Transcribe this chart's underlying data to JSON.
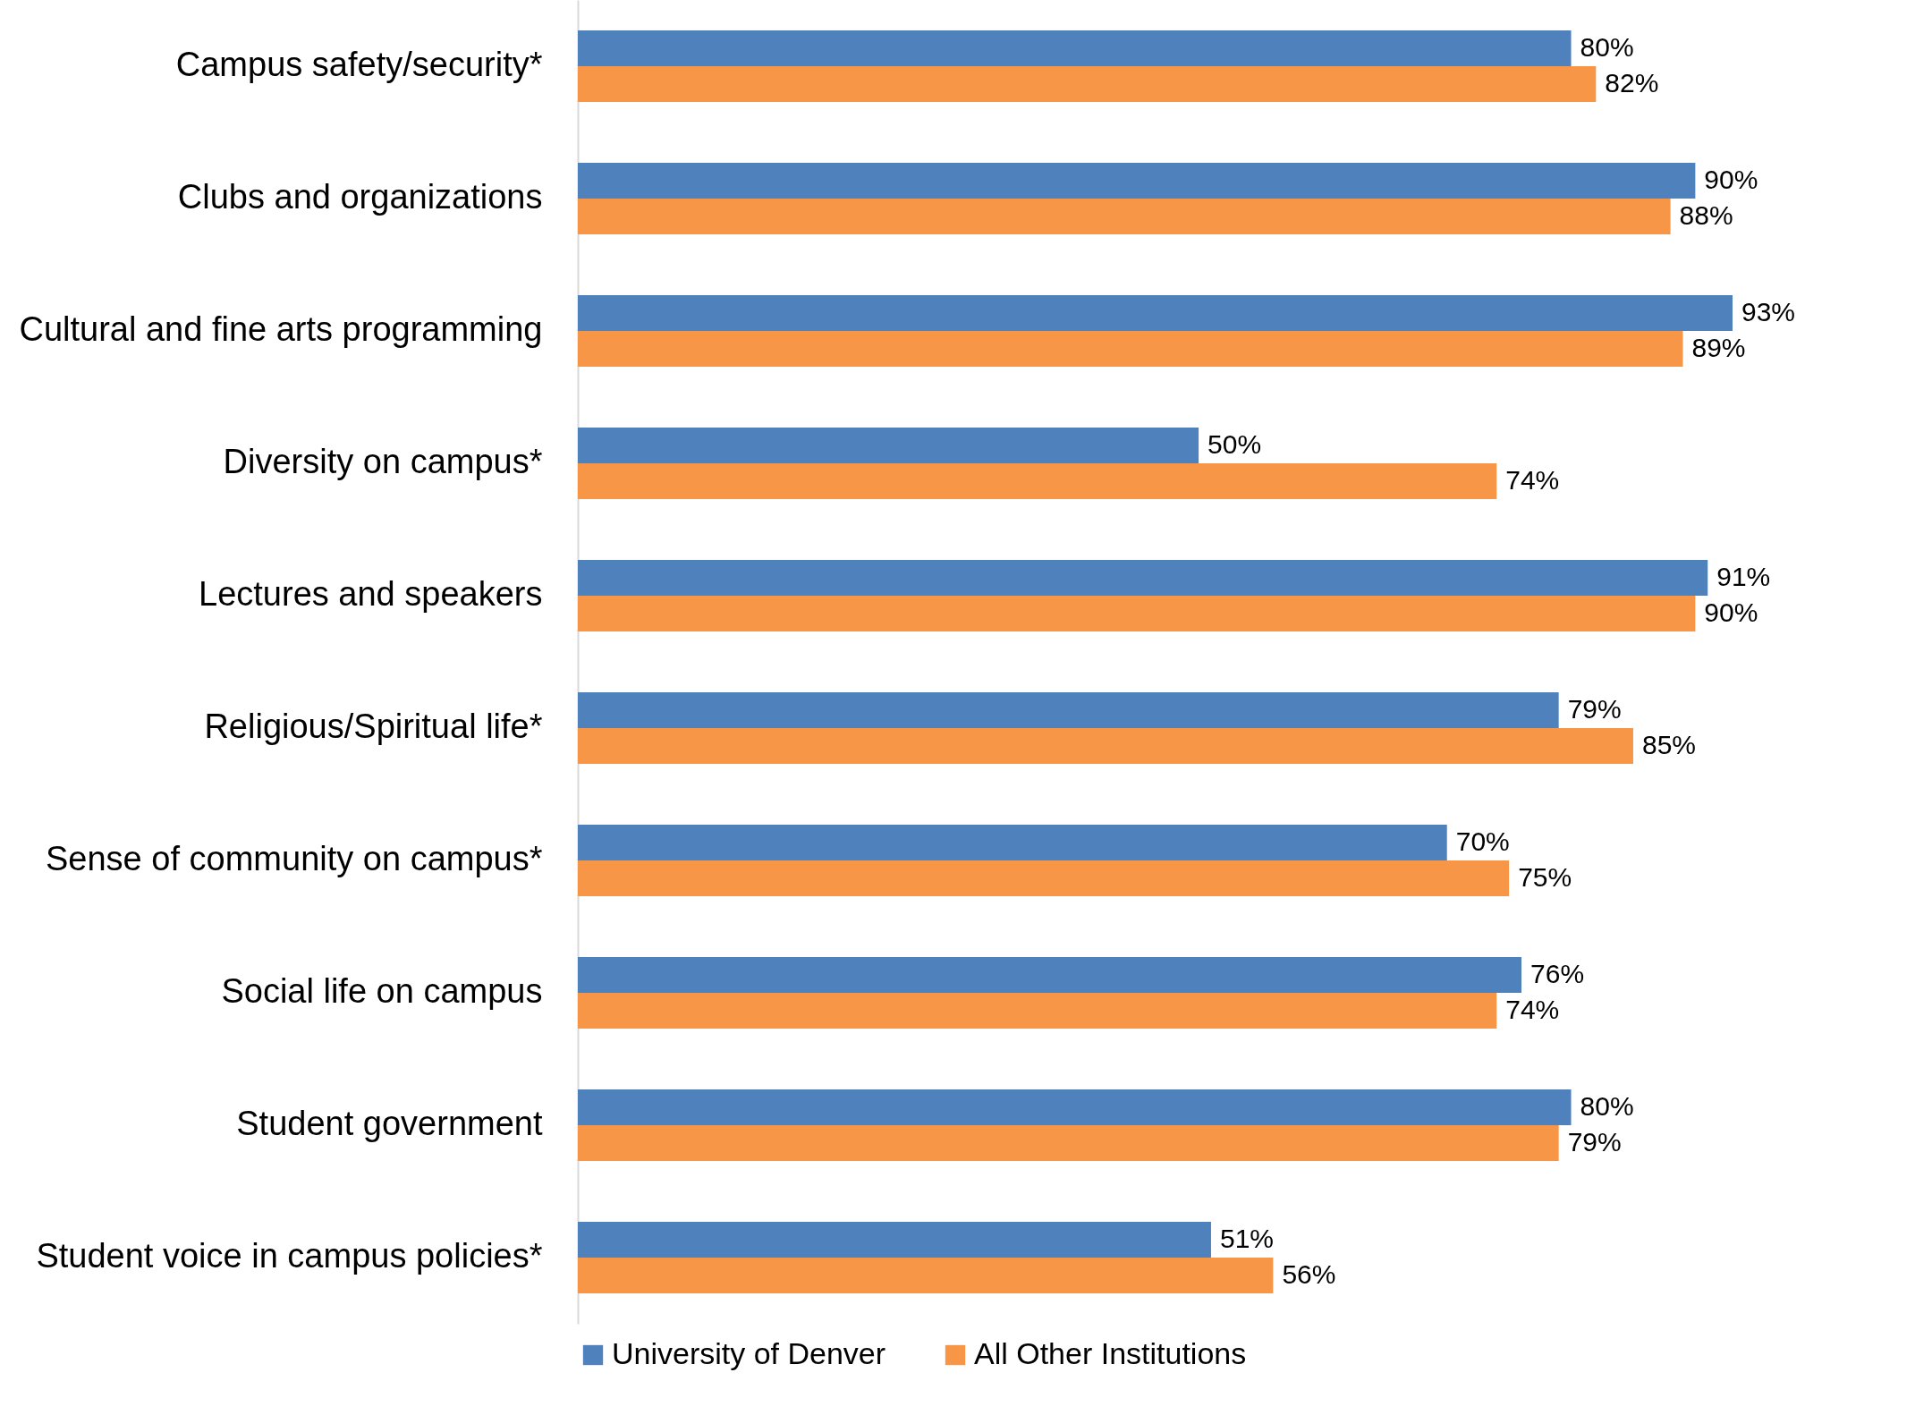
{
  "chart_data": {
    "type": "bar",
    "orientation": "horizontal",
    "legend": "bottom",
    "grid": false,
    "categories": [
      "Campus safety/security*",
      "Clubs and organizations",
      "Cultural and fine arts programming",
      "Diversity on campus*",
      "Lectures and speakers",
      "Religious/Spiritual life*",
      "Sense of community on campus*",
      "Social life on campus",
      "Student government",
      "Student voice in campus policies*"
    ],
    "series": [
      {
        "name": "University of Denver",
        "color": "#4f81bd",
        "values": [
          80,
          90,
          93,
          50,
          91,
          79,
          70,
          76,
          80,
          51
        ],
        "value_labels": [
          "80%",
          "90%",
          "93%",
          "50%",
          "91%",
          "79%",
          "70%",
          "76%",
          "80%",
          "51%"
        ]
      },
      {
        "name": "All Other Institutions",
        "color": "#f79646",
        "values": [
          82,
          88,
          89,
          74,
          90,
          85,
          75,
          74,
          79,
          56
        ],
        "value_labels": [
          "82%",
          "88%",
          "89%",
          "74%",
          "90%",
          "85%",
          "75%",
          "74%",
          "79%",
          "56%"
        ]
      }
    ]
  }
}
